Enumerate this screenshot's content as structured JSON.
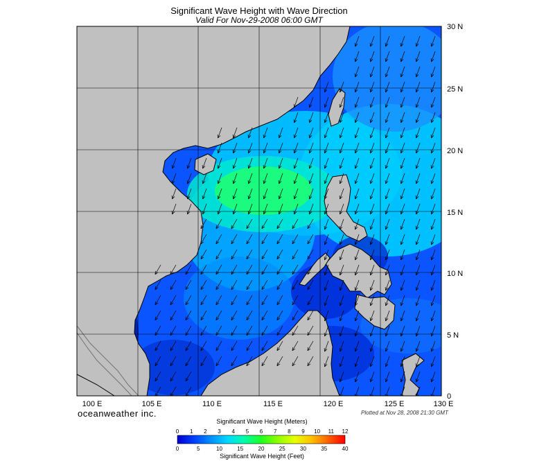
{
  "title": "Significant Wave Height with Wave Direction",
  "subtitle": "Valid For Nov-29-2008 06:00 GMT",
  "map": {
    "lon_range": [
      100,
      130
    ],
    "lat_range": [
      0,
      30
    ],
    "lon_ticks": [
      "100 E",
      "105 E",
      "110 E",
      "115 E",
      "120 E",
      "125 E",
      "130 E"
    ],
    "lat_ticks": [
      "0",
      "5 N",
      "10 N",
      "15 N",
      "20 N",
      "25 N",
      "30 N"
    ],
    "wave_direction": "from the northeast toward the southwest",
    "peak_wave_height_region": "central South China Sea, about 14-20 N, 109-118 E"
  },
  "brand": "oceanweather inc.",
  "plotted_note": "Plotted at Nov 28, 2008 21:30 GMT",
  "colorbar": {
    "meters_title": "Significant Wave Height (Meters)",
    "meters_ticks": [
      "0",
      "1",
      "2",
      "3",
      "4",
      "5",
      "6",
      "7",
      "8",
      "9",
      "10",
      "11",
      "12"
    ],
    "feet_title": "Significant Wave Height (Feet)",
    "feet_ticks": [
      "0",
      "5",
      "10",
      "15",
      "20",
      "25",
      "30",
      "35",
      "40"
    ],
    "colors": [
      "#0000cc",
      "#0040ff",
      "#0090ff",
      "#00d8ff",
      "#00ffa8",
      "#20ff20",
      "#90ff00",
      "#e8ff00",
      "#ffc000",
      "#ff6000",
      "#ff0000"
    ]
  }
}
